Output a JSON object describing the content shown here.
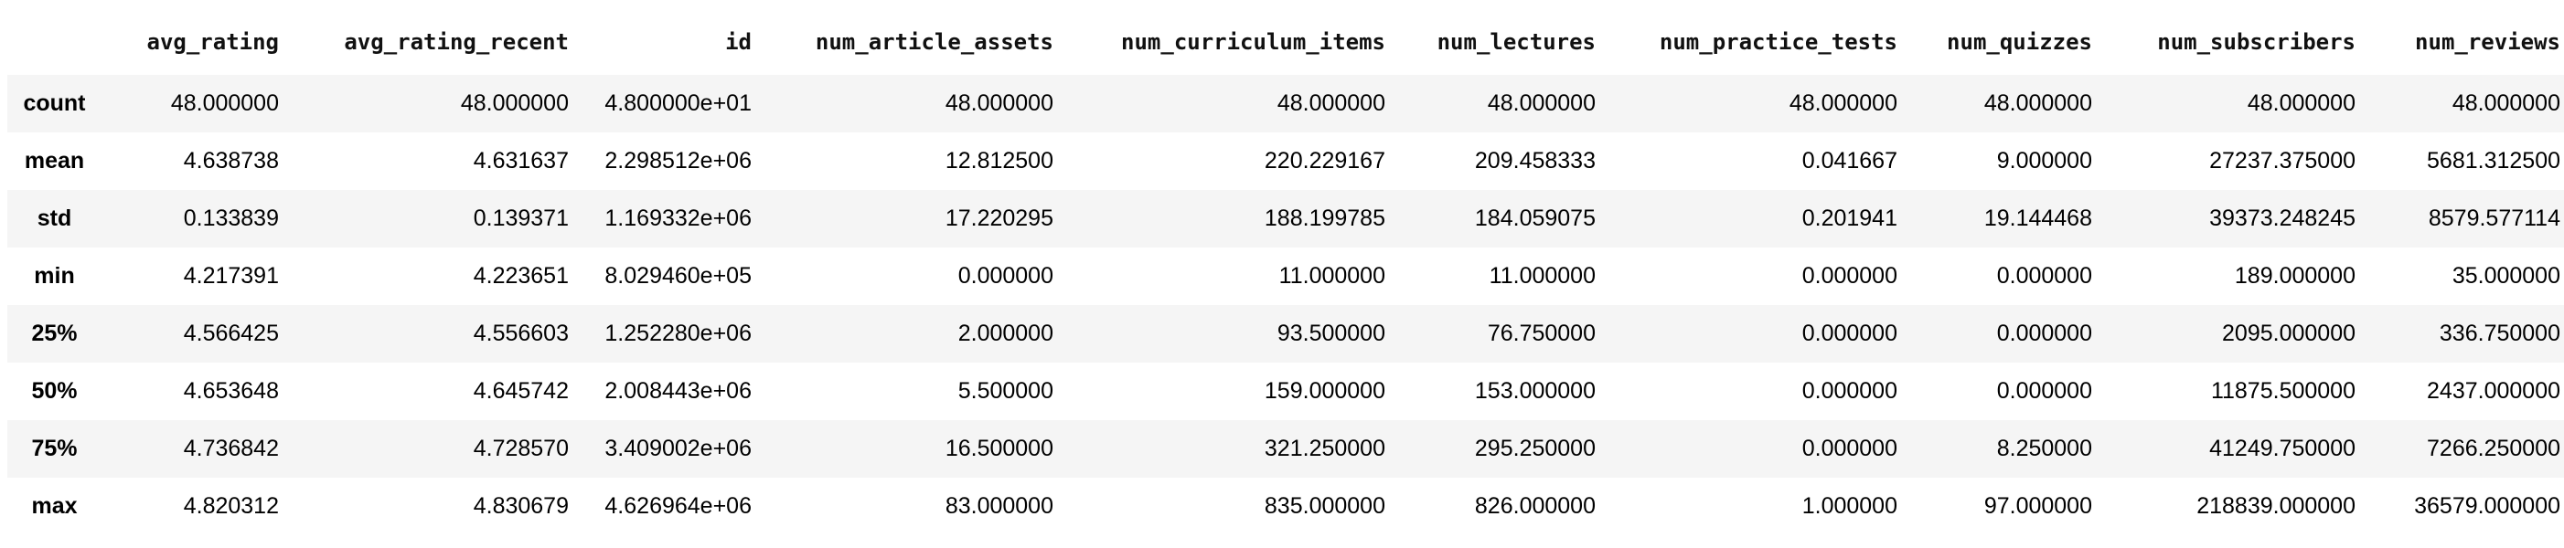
{
  "table": {
    "columns": [
      "avg_rating",
      "avg_rating_recent",
      "id",
      "num_article_assets",
      "num_curriculum_items",
      "num_lectures",
      "num_practice_tests",
      "num_quizzes",
      "num_subscribers",
      "num_reviews"
    ],
    "rows": [
      {
        "label": "count",
        "values": [
          "48.000000",
          "48.000000",
          "4.800000e+01",
          "48.000000",
          "48.000000",
          "48.000000",
          "48.000000",
          "48.000000",
          "48.000000",
          "48.000000"
        ]
      },
      {
        "label": "mean",
        "values": [
          "4.638738",
          "4.631637",
          "2.298512e+06",
          "12.812500",
          "220.229167",
          "209.458333",
          "0.041667",
          "9.000000",
          "27237.375000",
          "5681.312500"
        ]
      },
      {
        "label": "std",
        "values": [
          "0.133839",
          "0.139371",
          "1.169332e+06",
          "17.220295",
          "188.199785",
          "184.059075",
          "0.201941",
          "19.144468",
          "39373.248245",
          "8579.577114"
        ]
      },
      {
        "label": "min",
        "values": [
          "4.217391",
          "4.223651",
          "8.029460e+05",
          "0.000000",
          "11.000000",
          "11.000000",
          "0.000000",
          "0.000000",
          "189.000000",
          "35.000000"
        ]
      },
      {
        "label": "25%",
        "values": [
          "4.566425",
          "4.556603",
          "1.252280e+06",
          "2.000000",
          "93.500000",
          "76.750000",
          "0.000000",
          "0.000000",
          "2095.000000",
          "336.750000"
        ]
      },
      {
        "label": "50%",
        "values": [
          "4.653648",
          "4.645742",
          "2.008443e+06",
          "5.500000",
          "159.000000",
          "153.000000",
          "0.000000",
          "0.000000",
          "11875.500000",
          "2437.000000"
        ]
      },
      {
        "label": "75%",
        "values": [
          "4.736842",
          "4.728570",
          "3.409002e+06",
          "16.500000",
          "321.250000",
          "295.250000",
          "0.000000",
          "8.250000",
          "41249.750000",
          "7266.250000"
        ]
      },
      {
        "label": "max",
        "values": [
          "4.820312",
          "4.830679",
          "4.626964e+06",
          "83.000000",
          "835.000000",
          "826.000000",
          "1.000000",
          "97.000000",
          "218839.000000",
          "36579.000000"
        ]
      }
    ]
  }
}
